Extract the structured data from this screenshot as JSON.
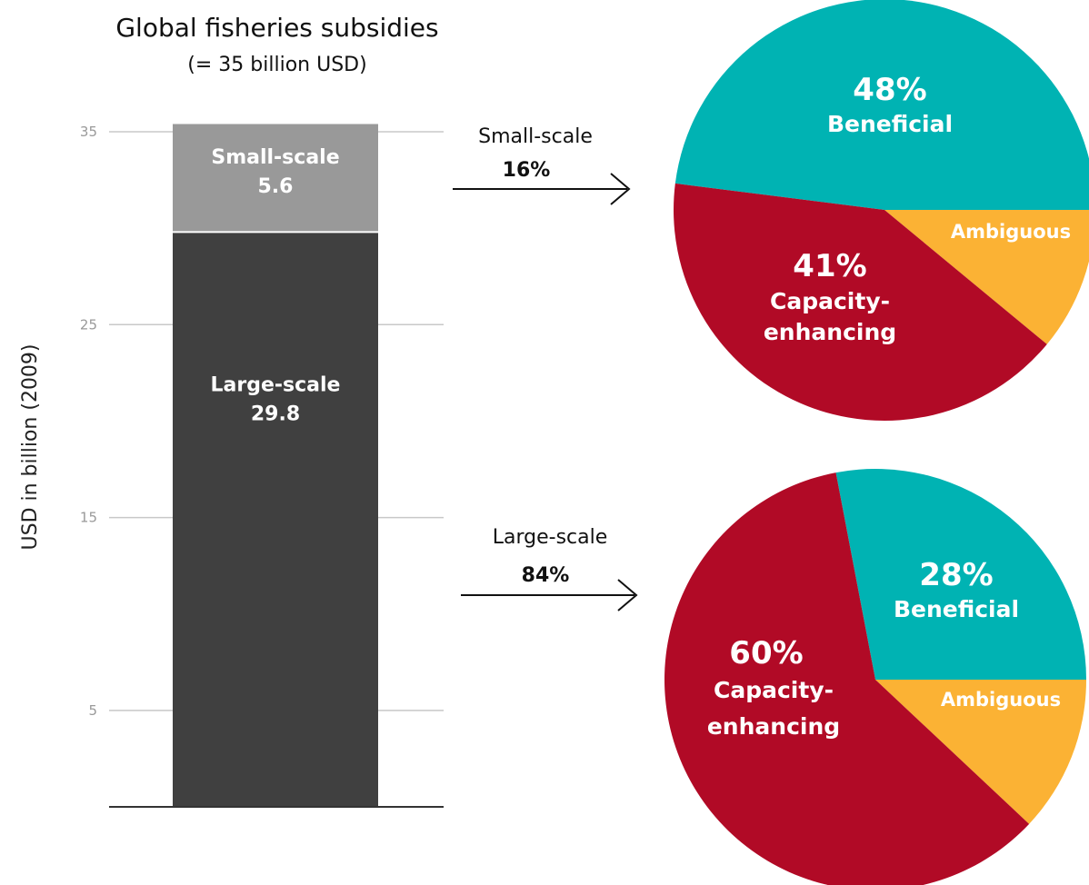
{
  "chart_data": [
    {
      "type": "bar",
      "title": "Global fisheries subsidies",
      "subtitle": "(= 35 billion USD)",
      "ylabel": "USD in billion (2009)",
      "ylim": [
        0,
        35
      ],
      "yticks": [
        5,
        15,
        25,
        35
      ],
      "stacked": true,
      "series": [
        {
          "name": "Large-scale",
          "values": [
            29.8
          ],
          "label_value": "29.8",
          "color": "#404040"
        },
        {
          "name": "Small-scale",
          "values": [
            5.6
          ],
          "label_value": "5.6",
          "color": "#999999"
        }
      ]
    },
    {
      "type": "pie",
      "label": "Small-scale",
      "share": "16%",
      "slices": [
        {
          "name": "Beneficial",
          "value": 48,
          "pct_label": "48%",
          "color": "#00b3b3"
        },
        {
          "name": "Ambiguous",
          "value": 11,
          "color": "#fbb234"
        },
        {
          "name": "Capacity-enhancing",
          "value": 41,
          "pct_label": "41%",
          "color": "#b10a26"
        }
      ]
    },
    {
      "type": "pie",
      "label": "Large-scale",
      "share": "84%",
      "slices": [
        {
          "name": "Beneficial",
          "value": 28,
          "pct_label": "28%",
          "color": "#00b3b3"
        },
        {
          "name": "Ambiguous",
          "value": 12,
          "color": "#fbb234"
        },
        {
          "name": "Capacity-enhancing",
          "value": 60,
          "pct_label": "60%",
          "color": "#b10a26"
        }
      ]
    }
  ]
}
